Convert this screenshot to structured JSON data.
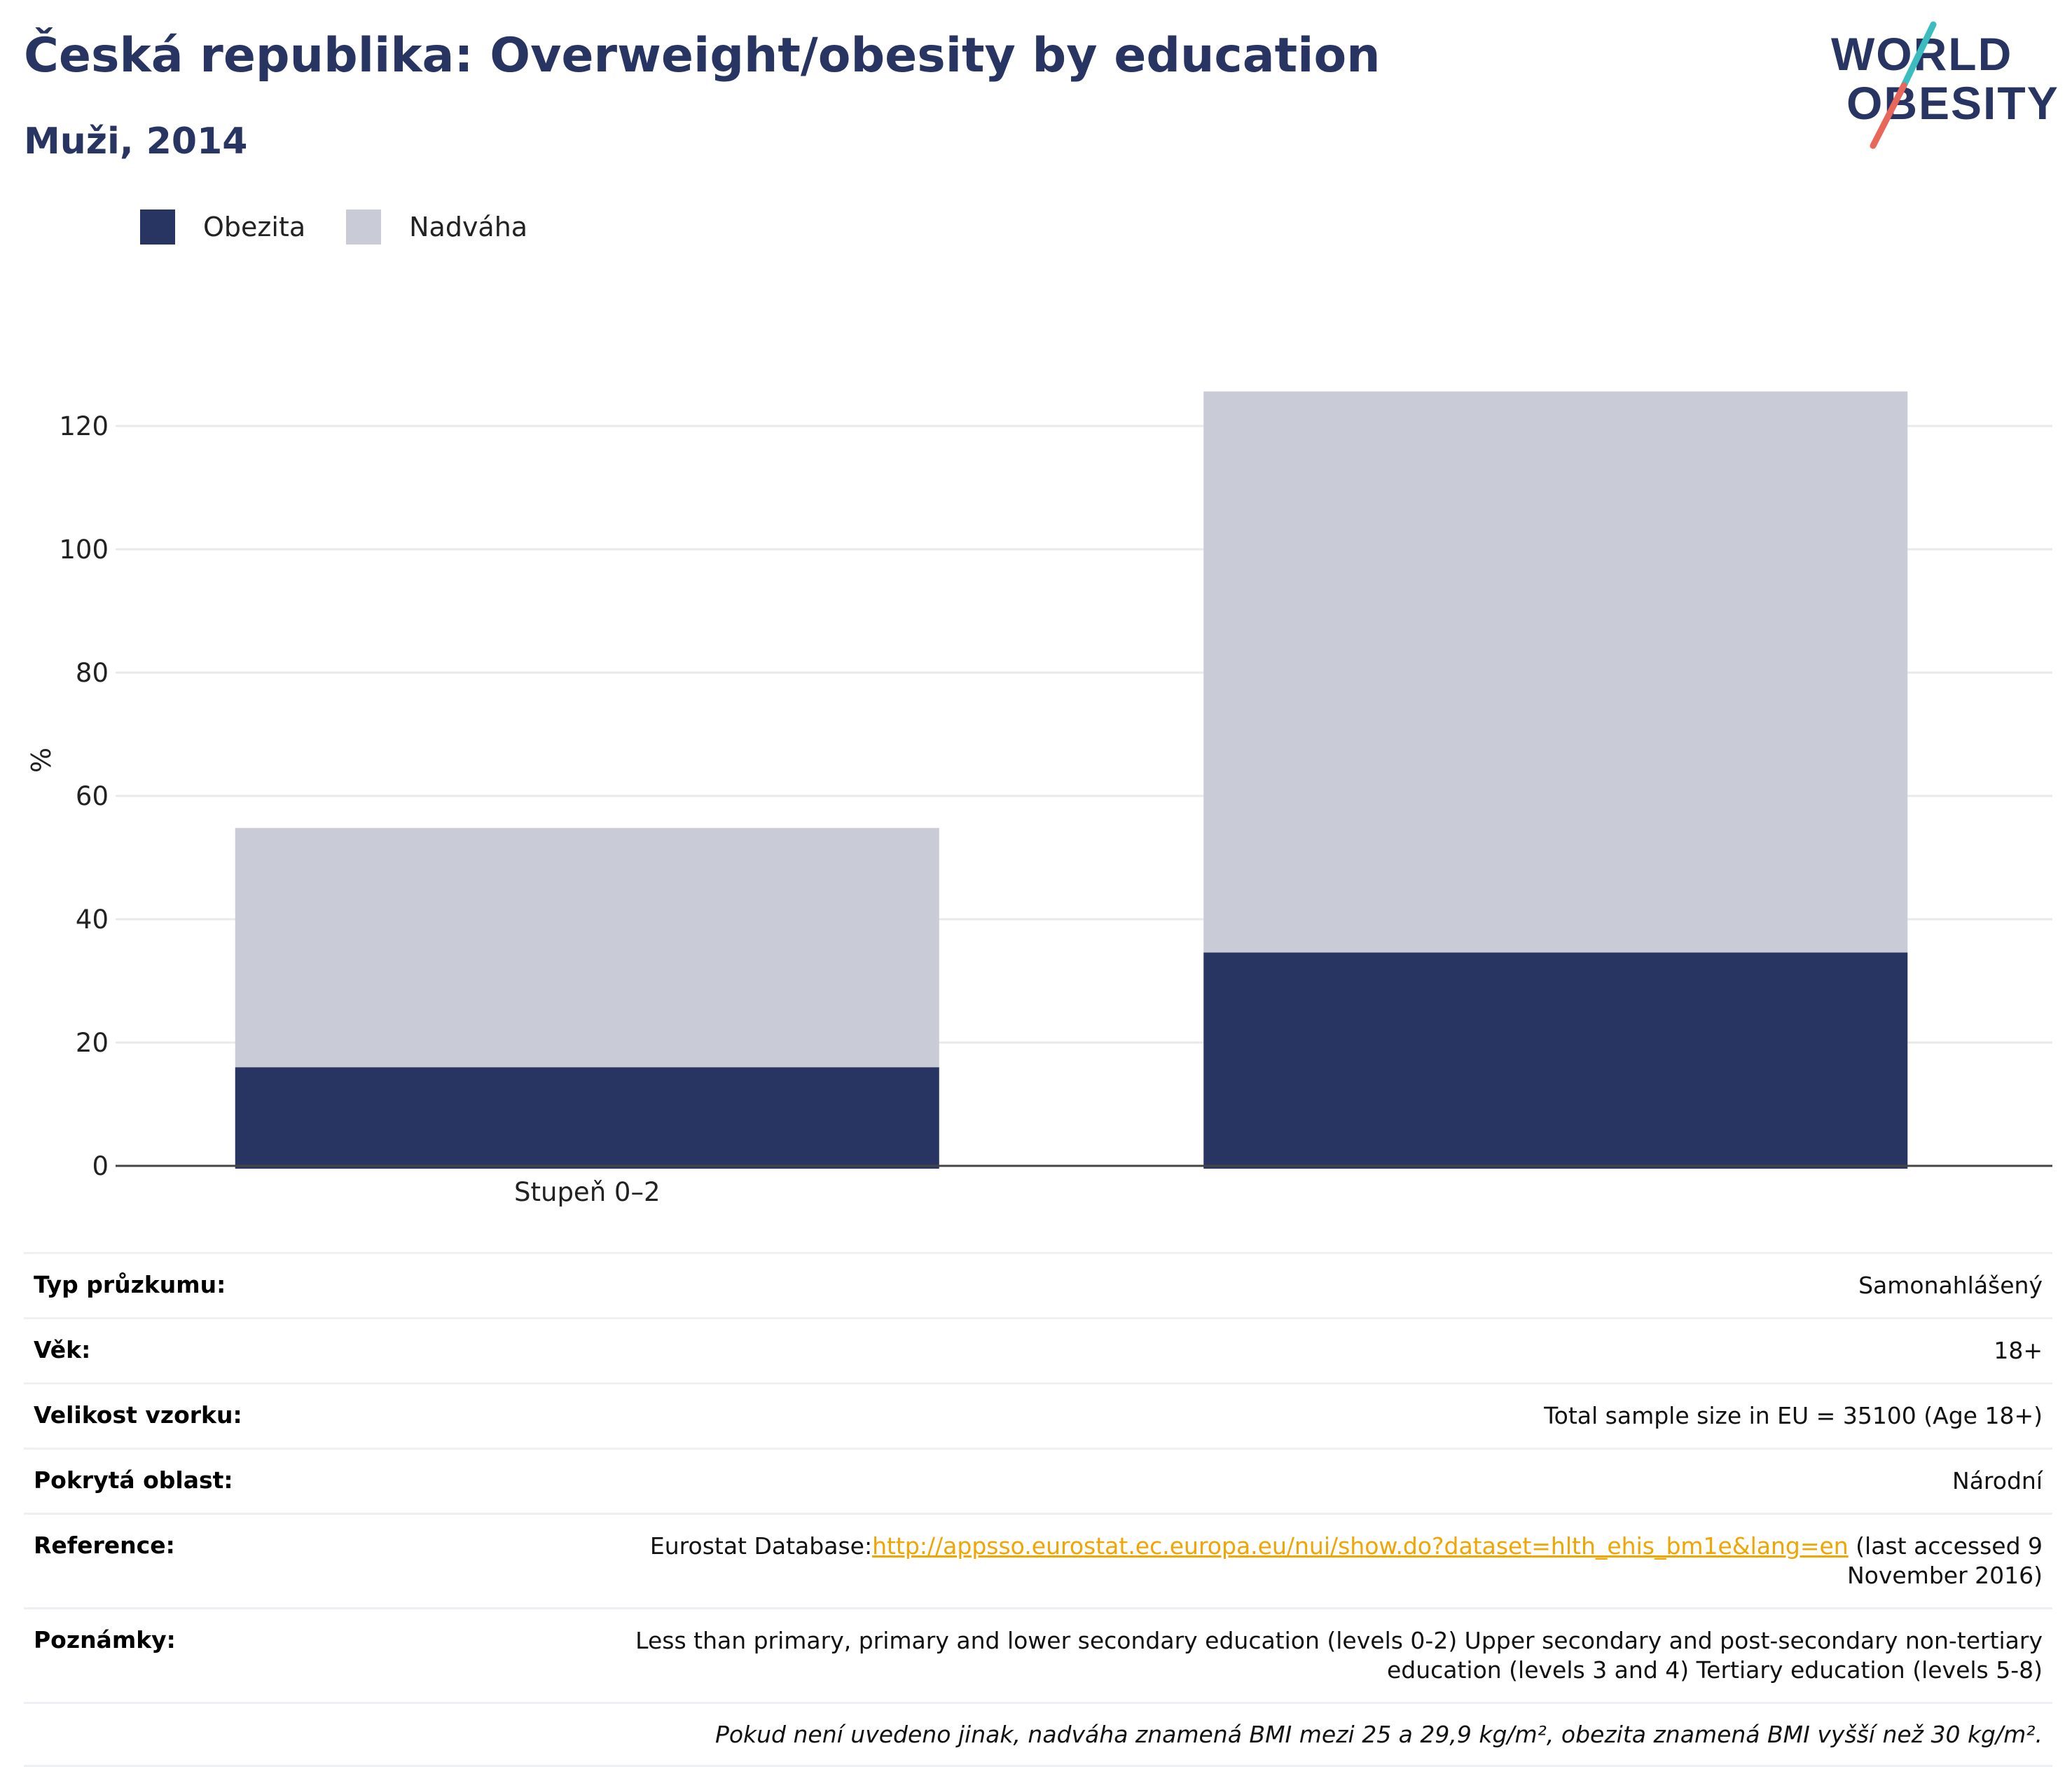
{
  "title": "Česká republika: Overweight/obesity by education",
  "subtitle": "Muži, 2014",
  "logo": {
    "line1": "WORLD",
    "line2": "OBESITY"
  },
  "legend": [
    {
      "label": "Obezita",
      "color": "#283563"
    },
    {
      "label": "Nadváha",
      "color": "#c9cbd6"
    }
  ],
  "chart_data": {
    "type": "bar",
    "stacked": true,
    "categories": [
      "Stupeň 0–2",
      ""
    ],
    "series": [
      {
        "name": "Obezita",
        "color": "#283563",
        "values": [
          16,
          34.6
        ]
      },
      {
        "name": "Nadváha",
        "color": "#c9cbd6",
        "values": [
          38.8,
          91
        ]
      }
    ],
    "ylabel": "%",
    "ylim": [
      0,
      130
    ],
    "yticks": [
      0,
      20,
      40,
      60,
      80,
      100,
      120
    ],
    "grid": true
  },
  "info": {
    "rows": [
      {
        "label": "Typ průzkumu:",
        "value": "Samonahlášený"
      },
      {
        "label": "Věk:",
        "value": "18+"
      },
      {
        "label": "Velikost vzorku:",
        "value": "Total sample size in EU = 35100 (Age 18+)"
      },
      {
        "label": "Pokrytá oblast:",
        "value": "Národní"
      }
    ],
    "reference": {
      "label": "Reference:",
      "prefix": "Eurostat Database:",
      "link": "http://appsso.eurostat.ec.europa.eu/nui/show.do?dataset=hlth_ehis_bm1e&lang=en",
      "suffix": " (last accessed 9 November 2016)"
    },
    "notes": {
      "label": "Poznámky:",
      "value": "Less than primary, primary and lower secondary education (levels 0-2) Upper secondary and post-secondary non-tertiary education (levels 3 and 4) Tertiary education (levels 5-8)"
    },
    "footnote": "Pokud není uvedeno jinak, nadváha znamená BMI mezi 25 a 29,9 kg/m², obezita znamená BMI vyšší než 30 kg/m²."
  }
}
